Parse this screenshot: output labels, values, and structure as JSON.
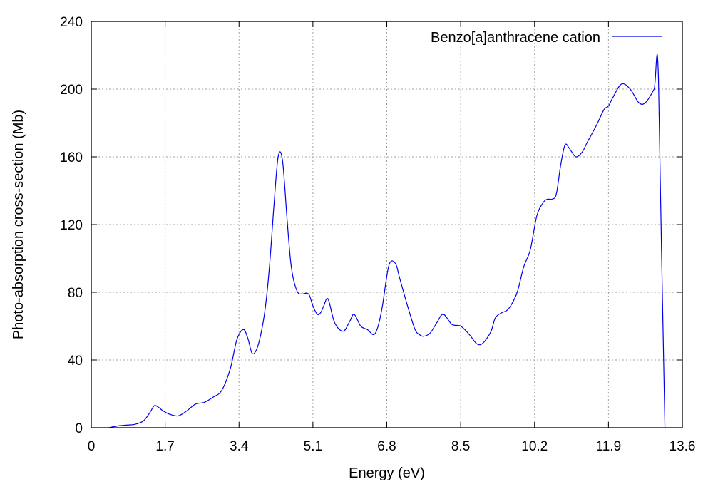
{
  "chart_data": {
    "type": "line",
    "title": "",
    "xlabel": "Energy (eV)",
    "ylabel": "Photo-absorption cross-section (Mb)",
    "xlim": [
      0,
      13.6
    ],
    "ylim": [
      0,
      240
    ],
    "xticks": [
      0,
      1.7,
      3.4,
      5.1,
      6.8,
      8.5,
      10.2,
      11.9,
      13.6
    ],
    "xtick_labels": [
      "0",
      "1.7",
      "3.4",
      "5.1",
      "6.8",
      "8.5",
      "10.2",
      "11.9",
      "13.6"
    ],
    "yticks": [
      0,
      40,
      80,
      120,
      160,
      200,
      240
    ],
    "ytick_labels": [
      "0",
      "40",
      "80",
      "120",
      "160",
      "200",
      "240"
    ],
    "grid": true,
    "legend_position": "top-right",
    "series": [
      {
        "name": "Benzo[a]anthracene cation",
        "color": "#0000ee",
        "x": [
          0.4,
          0.6,
          0.8,
          1.0,
          1.2,
          1.35,
          1.45,
          1.55,
          1.65,
          1.8,
          2.0,
          2.2,
          2.4,
          2.6,
          2.8,
          3.0,
          3.2,
          3.35,
          3.5,
          3.6,
          3.7,
          3.8,
          3.9,
          4.0,
          4.1,
          4.2,
          4.3,
          4.4,
          4.5,
          4.58,
          4.65,
          4.75,
          4.85,
          5.0,
          5.1,
          5.2,
          5.28,
          5.35,
          5.45,
          5.6,
          5.8,
          5.95,
          6.05,
          6.2,
          6.35,
          6.5,
          6.6,
          6.7,
          6.85,
          7.0,
          7.1,
          7.3,
          7.45,
          7.55,
          7.65,
          7.8,
          7.95,
          8.1,
          8.3,
          8.5,
          8.7,
          8.85,
          8.95,
          9.05,
          9.2,
          9.3,
          9.45,
          9.55,
          9.65,
          9.8,
          9.95,
          10.1,
          10.25,
          10.4,
          10.5,
          10.6,
          10.7,
          10.8,
          10.9,
          11.0,
          11.15,
          11.3,
          11.4,
          11.55,
          11.65,
          11.8,
          11.9,
          12.0,
          12.2,
          12.4,
          12.6,
          12.75,
          12.95,
          13.05,
          13.2,
          13.35,
          13.6
        ],
        "y": [
          0,
          1,
          1.5,
          2,
          4,
          9,
          13,
          12,
          10,
          8,
          7,
          10,
          14,
          15,
          18,
          22,
          35,
          52,
          58,
          53,
          44,
          46,
          55,
          70,
          95,
          130,
          160,
          158,
          125,
          100,
          88,
          80,
          79,
          79,
          72,
          67,
          68,
          72,
          76,
          62,
          57,
          63,
          67,
          60,
          58,
          55,
          60,
          72,
          96,
          97,
          88,
          70,
          58,
          55,
          54,
          56,
          62,
          67,
          61,
          60,
          55,
          50,
          49,
          51,
          57,
          65,
          68,
          69,
          72,
          80,
          95,
          105,
          125,
          133,
          135,
          135,
          138,
          155,
          167,
          165,
          160,
          163,
          168,
          175,
          180,
          188,
          190,
          195,
          203,
          200,
          192,
          192,
          200,
          207,
          0,
          0,
          0
        ],
        "x_clean": [
          0.4,
          0.6,
          0.8,
          1.0,
          1.2,
          1.35,
          1.45,
          1.55,
          1.65,
          1.8,
          2.0,
          2.2,
          2.4,
          2.6,
          2.8,
          3.0,
          3.2,
          3.35,
          3.5,
          3.6,
          3.7,
          3.8,
          3.9,
          4.0,
          4.1,
          4.2,
          4.3,
          4.4,
          4.5,
          4.58,
          4.65,
          4.75,
          4.85,
          5.0,
          5.1,
          5.2,
          5.28,
          5.35,
          5.45,
          5.6,
          5.8,
          5.95,
          6.05,
          6.2,
          6.35,
          6.5,
          6.6,
          6.7,
          6.85,
          7.0,
          7.1,
          7.3,
          7.45,
          7.55,
          7.65,
          7.8,
          7.95,
          8.1,
          8.3,
          8.5,
          8.7,
          8.85,
          8.95,
          9.05,
          9.2,
          9.3,
          9.45,
          9.55,
          9.65,
          9.8,
          9.95,
          10.1,
          10.25,
          10.4,
          10.5,
          10.6,
          10.7,
          10.8,
          10.9,
          11.0,
          11.15,
          11.3,
          11.4,
          11.55,
          11.65,
          11.8,
          11.9,
          12.0,
          12.2,
          12.4,
          12.6,
          12.75,
          12.95,
          13.05,
          13.2,
          13.35,
          13.6
        ]
      }
    ]
  }
}
